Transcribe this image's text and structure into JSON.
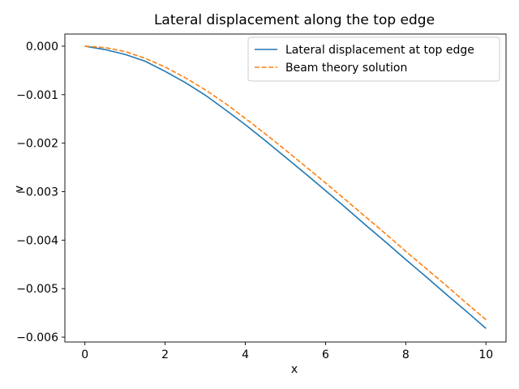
{
  "chart_data": {
    "type": "line",
    "title": "Lateral displacement along the top edge",
    "xlabel": "x",
    "ylabel": "v",
    "xlim": [
      -0.5,
      10.5
    ],
    "ylim": [
      -0.0061,
      0.00025
    ],
    "xticks": [
      0,
      2,
      4,
      6,
      8,
      10
    ],
    "xtick_labels": [
      "0",
      "2",
      "4",
      "6",
      "8",
      "10"
    ],
    "yticks": [
      0.0,
      -0.001,
      -0.002,
      -0.003,
      -0.004,
      -0.005,
      -0.006
    ],
    "ytick_labels": [
      "0.000",
      "−0.001",
      "−0.002",
      "−0.003",
      "−0.004",
      "−0.005",
      "−0.006"
    ],
    "grid": false,
    "legend_position": "top-right",
    "series": [
      {
        "name": "Lateral displacement at top edge",
        "color": "#1f77b4",
        "style": "solid",
        "x": [
          0,
          0.5,
          1,
          1.5,
          2,
          2.5,
          3,
          3.5,
          4,
          4.5,
          5,
          5.5,
          6,
          6.5,
          7,
          7.5,
          8,
          8.5,
          9,
          9.5,
          10
        ],
        "y": [
          0.0,
          -7e-05,
          -0.00017,
          -0.00031,
          -0.00052,
          -0.00075,
          -0.00101,
          -0.00131,
          -0.00162,
          -0.00195,
          -0.00229,
          -0.00263,
          -0.00298,
          -0.00333,
          -0.00369,
          -0.00404,
          -0.0044,
          -0.00475,
          -0.00511,
          -0.00546,
          -0.00582
        ]
      },
      {
        "name": "Beam theory solution",
        "color": "#ff7f0e",
        "style": "dashed",
        "x": [
          0,
          0.5,
          1,
          1.5,
          2,
          2.5,
          3,
          3.5,
          4,
          4.5,
          5,
          5.5,
          6,
          6.5,
          7,
          7.5,
          8,
          8.5,
          9,
          9.5,
          10
        ],
        "y": [
          0.0,
          -3e-05,
          -0.00011,
          -0.00025,
          -0.00043,
          -0.00065,
          -0.0009,
          -0.00118,
          -0.00149,
          -0.00181,
          -0.00214,
          -0.00248,
          -0.00282,
          -0.00317,
          -0.00352,
          -0.00387,
          -0.00423,
          -0.00458,
          -0.00493,
          -0.00529,
          -0.00564
        ]
      }
    ]
  }
}
